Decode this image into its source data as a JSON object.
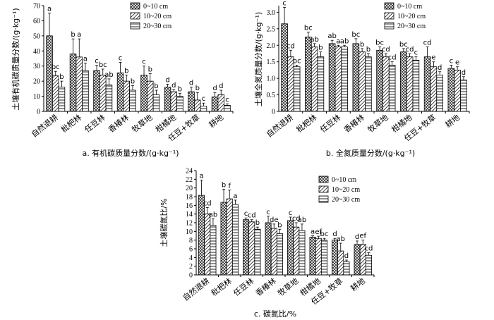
{
  "legend_entries": [
    "0~10 cm",
    "10~20 cm",
    "20~30 cm"
  ],
  "chart_data": [
    {
      "type": "bar",
      "caption": "a. 有机碳质量分数/(g·kg⁻¹)",
      "ylabel": "土壤有机碳质量分数/(g·kg⁻¹)",
      "ylim": [
        0,
        70
      ],
      "yticks": [
        "0",
        "10",
        "20",
        "30",
        "40",
        "50",
        "60",
        "70"
      ],
      "legend_position": "top-right",
      "grid": false,
      "categories": [
        "自然退耕",
        "枇杷林",
        "任豆林",
        "香椿林",
        "牧草地",
        "柑橘地",
        "任豆+牧草",
        "耕地"
      ],
      "series": [
        {
          "name": "0~10 cm",
          "values": [
            50,
            38,
            27,
            25.5,
            24,
            16,
            13,
            9.5
          ],
          "errors": [
            15,
            10,
            3.5,
            7,
            6,
            2,
            3,
            3
          ],
          "labels": [
            "a",
            "b",
            "c",
            "c",
            "c",
            "d",
            "d",
            "d"
          ]
        },
        {
          "name": "10~20 cm",
          "values": [
            23.5,
            36,
            24,
            20,
            20,
            13,
            7.5,
            11
          ],
          "errors": [
            3,
            12,
            4,
            4,
            5,
            1.5,
            5,
            3
          ],
          "labels": [
            "bc",
            "a",
            "bc",
            "b",
            "b",
            "d",
            "b",
            "d"
          ]
        },
        {
          "name": "20~30 cm",
          "values": [
            16,
            27,
            17.5,
            14,
            11,
            10,
            3.5,
            4
          ],
          "errors": [
            4,
            5,
            4,
            3,
            3,
            2,
            2,
            1
          ],
          "labels": [
            "b",
            "a",
            "ab",
            "b",
            "b",
            "b",
            "c",
            "c"
          ]
        }
      ]
    },
    {
      "type": "bar",
      "caption": "b. 全氮质量分数/(g·kg⁻¹)",
      "ylabel": "土壤全氮质量分数/(g·kg⁻¹)",
      "ylim": [
        0,
        3.2
      ],
      "yticks": [
        "0",
        "0.5",
        "1.0",
        "1.5",
        "2.0",
        "2.5",
        "3.0"
      ],
      "legend_position": "top-right",
      "grid": false,
      "categories": [
        "自然退耕",
        "枇杷林",
        "任豆林",
        "香椿林",
        "牧草地",
        "柑橘地",
        "任豆+牧草",
        "耕地"
      ],
      "series": [
        {
          "name": "0~10 cm",
          "values": [
            2.65,
            2.25,
            2.05,
            2.05,
            1.85,
            1.8,
            1.65,
            1.3
          ],
          "errors": [
            0.5,
            0.15,
            0.1,
            0.15,
            0.1,
            0.1,
            0.3,
            0.1
          ],
          "labels": [
            "c",
            "bc",
            "ab",
            "bc",
            "bc",
            "bc",
            "cd",
            "c"
          ]
        },
        {
          "name": "10~20 cm",
          "values": [
            1.65,
            1.95,
            1.95,
            1.8,
            1.65,
            1.65,
            1.35,
            1.25
          ],
          "errors": [
            0.2,
            0.1,
            0.05,
            0.1,
            0.1,
            0.1,
            0.15,
            0.1
          ],
          "labels": [
            "cd",
            "ab",
            "a",
            "b",
            "cd",
            "cd",
            "e",
            "e"
          ]
        },
        {
          "name": "20~30 cm",
          "values": [
            1.35,
            1.65,
            1.95,
            1.65,
            1.4,
            1.55,
            1.1,
            0.95
          ],
          "errors": [
            0.05,
            0.15,
            0.05,
            0.1,
            0.1,
            0.1,
            0.1,
            0.1
          ],
          "labels": [
            "bc",
            "b",
            "ab",
            "b",
            "cd",
            "c",
            "d",
            "d"
          ]
        }
      ]
    },
    {
      "type": "bar",
      "caption": "c. 碳氮比/%",
      "ylabel": "土壤碳氮比/%",
      "ylim": [
        0,
        24
      ],
      "yticks": [
        "0",
        "2",
        "4",
        "6",
        "8",
        "10",
        "12",
        "14",
        "16",
        "18",
        "20",
        "22",
        "24"
      ],
      "legend_position": "top-right",
      "grid": false,
      "categories": [
        "自然退耕",
        "枇杷林",
        "任豆林",
        "香椿林",
        "牧草地",
        "柑橘地",
        "任豆+牧草",
        "耕地"
      ],
      "series": [
        {
          "name": "0~10 cm",
          "values": [
            18.3,
            16.7,
            12.7,
            12,
            12.5,
            8.7,
            8,
            7
          ],
          "errors": [
            3.5,
            3,
            0.4,
            1.5,
            0.8,
            0.3,
            0.4,
            0.8
          ],
          "labels": [
            "a",
            "b",
            "c",
            "c",
            "c",
            "a",
            "d",
            "d"
          ]
        },
        {
          "name": "10~20 cm",
          "values": [
            14,
            17.5,
            12.2,
            10.7,
            11,
            8.4,
            5.5,
            7
          ],
          "errors": [
            1.5,
            2,
            0.5,
            1,
            1,
            0.5,
            1.8,
            1
          ],
          "labels": [
            "cd",
            "f",
            "cd",
            "de",
            "cd",
            "ef",
            "ab",
            "ef"
          ]
        },
        {
          "name": "20~30 cm",
          "values": [
            11.4,
            16.2,
            10.5,
            9.5,
            10.2,
            8,
            3,
            4.5
          ],
          "errors": [
            1.5,
            1,
            0.5,
            1,
            1.5,
            0.4,
            0.4,
            0.6
          ],
          "labels": [
            "ab",
            "a",
            "b",
            "b",
            "ab",
            "bc",
            "d",
            "cd"
          ]
        }
      ]
    }
  ]
}
